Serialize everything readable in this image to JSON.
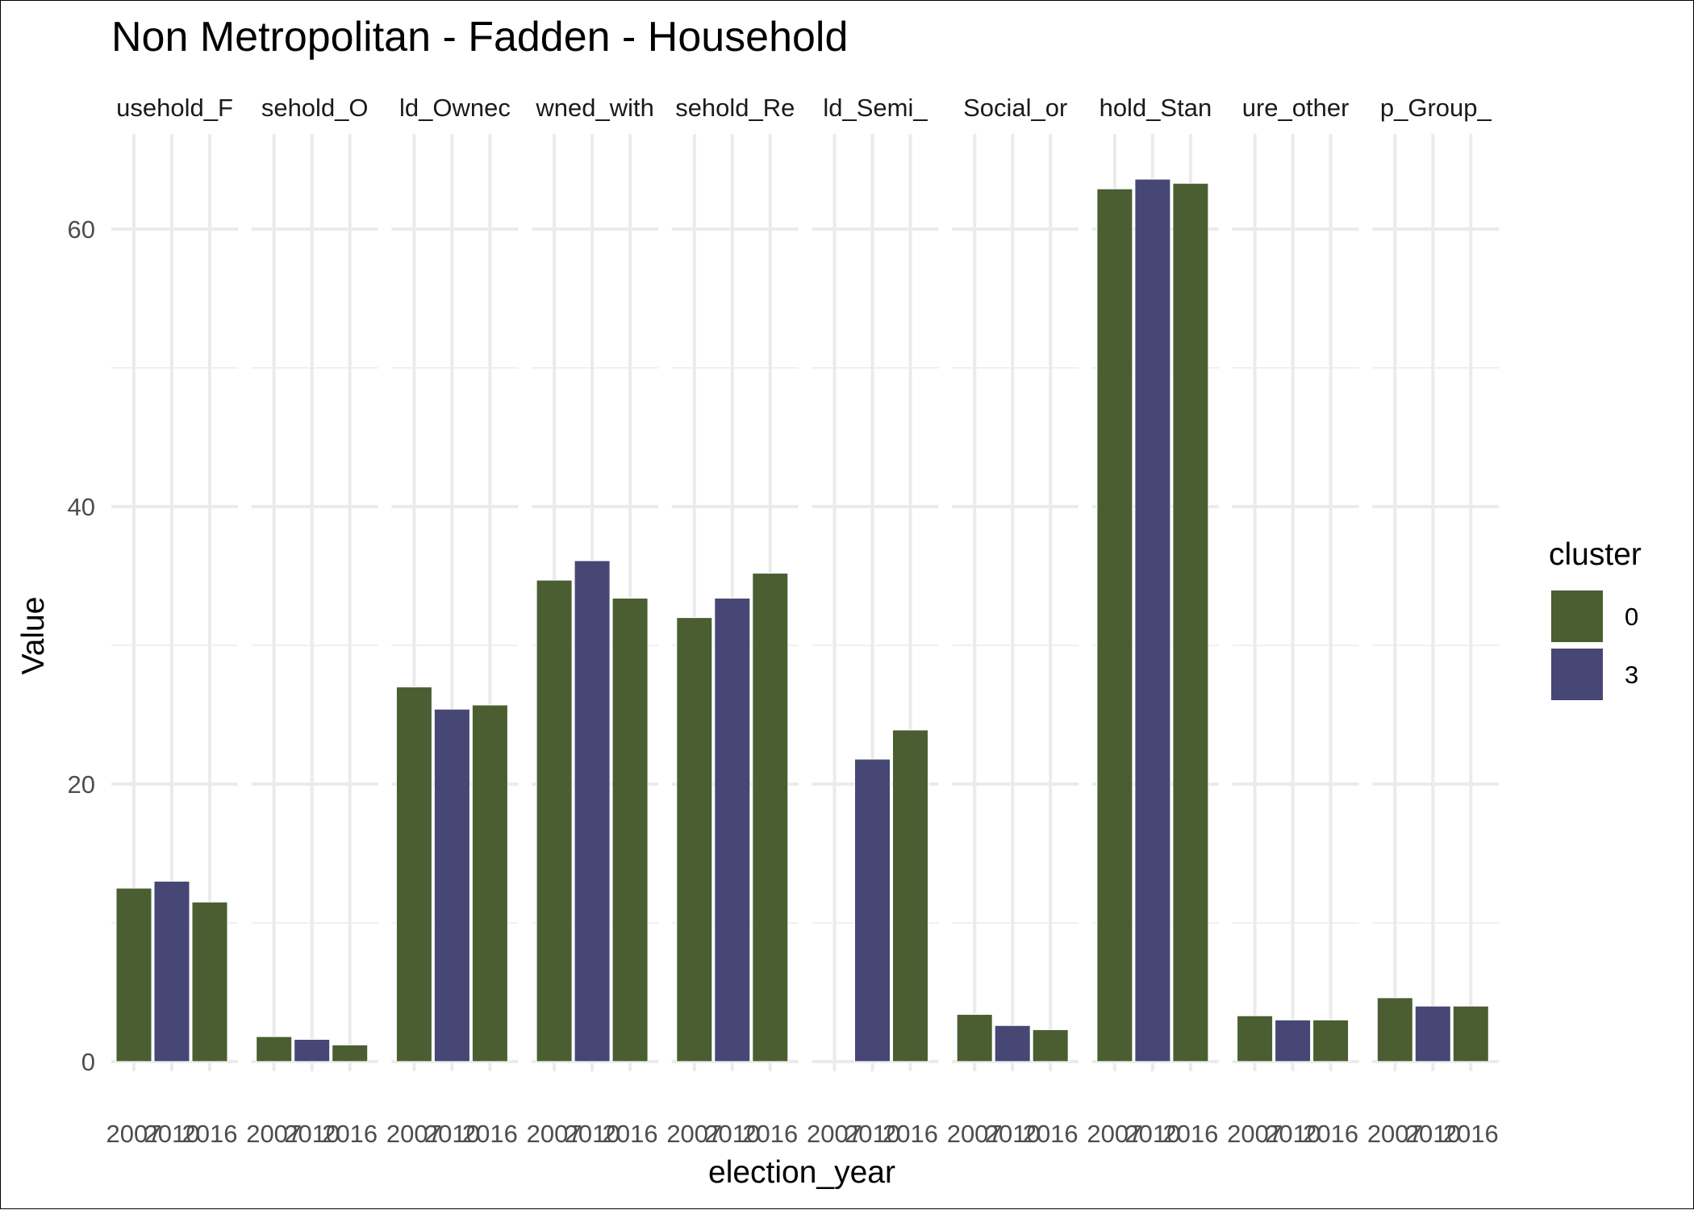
{
  "chart_data": {
    "type": "bar",
    "title": "Non Metropolitan - Fadden - Household",
    "xlabel": "election_year",
    "ylabel": "Value",
    "ylim": [
      0,
      67
    ],
    "y_ticks": [
      0,
      20,
      40,
      60
    ],
    "grid": true,
    "legend_position": "right",
    "legend": {
      "title": "cluster",
      "entries": [
        {
          "label": "0",
          "color": "#4a5e32"
        },
        {
          "label": "3",
          "color": "#474775"
        }
      ]
    },
    "categories": [
      "2007",
      "2010",
      "2016"
    ],
    "facets": [
      {
        "label": "usehold_F",
        "bars": [
          {
            "x": "2007",
            "value": 12.5,
            "cluster": "0"
          },
          {
            "x": "2010",
            "value": 13.0,
            "cluster": "3"
          },
          {
            "x": "2016",
            "value": 11.5,
            "cluster": "0"
          }
        ]
      },
      {
        "label": "sehold_O",
        "bars": [
          {
            "x": "2007",
            "value": 1.8,
            "cluster": "0"
          },
          {
            "x": "2010",
            "value": 1.6,
            "cluster": "3"
          },
          {
            "x": "2016",
            "value": 1.2,
            "cluster": "0"
          }
        ]
      },
      {
        "label": "ld_Ownec",
        "bars": [
          {
            "x": "2007",
            "value": 27.0,
            "cluster": "0"
          },
          {
            "x": "2010",
            "value": 25.4,
            "cluster": "3"
          },
          {
            "x": "2016",
            "value": 25.7,
            "cluster": "0"
          }
        ]
      },
      {
        "label": "wned_with",
        "bars": [
          {
            "x": "2007",
            "value": 34.7,
            "cluster": "0"
          },
          {
            "x": "2010",
            "value": 36.1,
            "cluster": "3"
          },
          {
            "x": "2016",
            "value": 33.4,
            "cluster": "0"
          }
        ]
      },
      {
        "label": "sehold_Re",
        "bars": [
          {
            "x": "2007",
            "value": 32.0,
            "cluster": "0"
          },
          {
            "x": "2010",
            "value": 33.4,
            "cluster": "3"
          },
          {
            "x": "2016",
            "value": 35.2,
            "cluster": "0"
          }
        ]
      },
      {
        "label": "ld_Semi_",
        "bars": [
          {
            "x": "2010",
            "value": 21.8,
            "cluster": "3"
          },
          {
            "x": "2016",
            "value": 23.9,
            "cluster": "0"
          }
        ]
      },
      {
        "label": "Social_or",
        "bars": [
          {
            "x": "2007",
            "value": 3.4,
            "cluster": "0"
          },
          {
            "x": "2010",
            "value": 2.6,
            "cluster": "3"
          },
          {
            "x": "2016",
            "value": 2.3,
            "cluster": "0"
          }
        ]
      },
      {
        "label": "hold_Stan",
        "bars": [
          {
            "x": "2007",
            "value": 62.9,
            "cluster": "0"
          },
          {
            "x": "2010",
            "value": 63.6,
            "cluster": "3"
          },
          {
            "x": "2016",
            "value": 63.3,
            "cluster": "0"
          }
        ]
      },
      {
        "label": "ure_other",
        "bars": [
          {
            "x": "2007",
            "value": 3.3,
            "cluster": "0"
          },
          {
            "x": "2010",
            "value": 3.0,
            "cluster": "3"
          },
          {
            "x": "2016",
            "value": 3.0,
            "cluster": "0"
          }
        ]
      },
      {
        "label": "p_Group_",
        "bars": [
          {
            "x": "2007",
            "value": 4.6,
            "cluster": "0"
          },
          {
            "x": "2010",
            "value": 4.0,
            "cluster": "3"
          },
          {
            "x": "2016",
            "value": 4.0,
            "cluster": "0"
          }
        ]
      }
    ]
  }
}
